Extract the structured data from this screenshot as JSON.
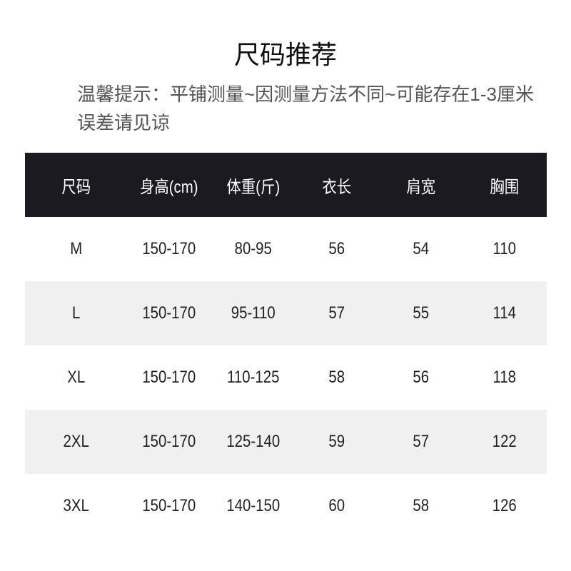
{
  "title": "尺码推荐",
  "note": "温馨提示：平铺测量~因测量方法不同~可能存在1-3厘米误差请见谅",
  "table": {
    "headers": [
      "尺码",
      "身高(cm)",
      "体重(斤)",
      "衣长",
      "肩宽",
      "胸围"
    ],
    "rows": [
      [
        "M",
        "150-170",
        "80-95",
        "56",
        "54",
        "110"
      ],
      [
        "L",
        "150-170",
        "95-110",
        "57",
        "55",
        "114"
      ],
      [
        "XL",
        "150-170",
        "110-125",
        "58",
        "56",
        "118"
      ],
      [
        "2XL",
        "150-170",
        "125-140",
        "59",
        "57",
        "122"
      ],
      [
        "3XL",
        "150-170",
        "140-150",
        "60",
        "58",
        "126"
      ]
    ]
  },
  "colors": {
    "header_bg": "#1b1a21",
    "alt_row_bg": "#f0f0f0"
  }
}
